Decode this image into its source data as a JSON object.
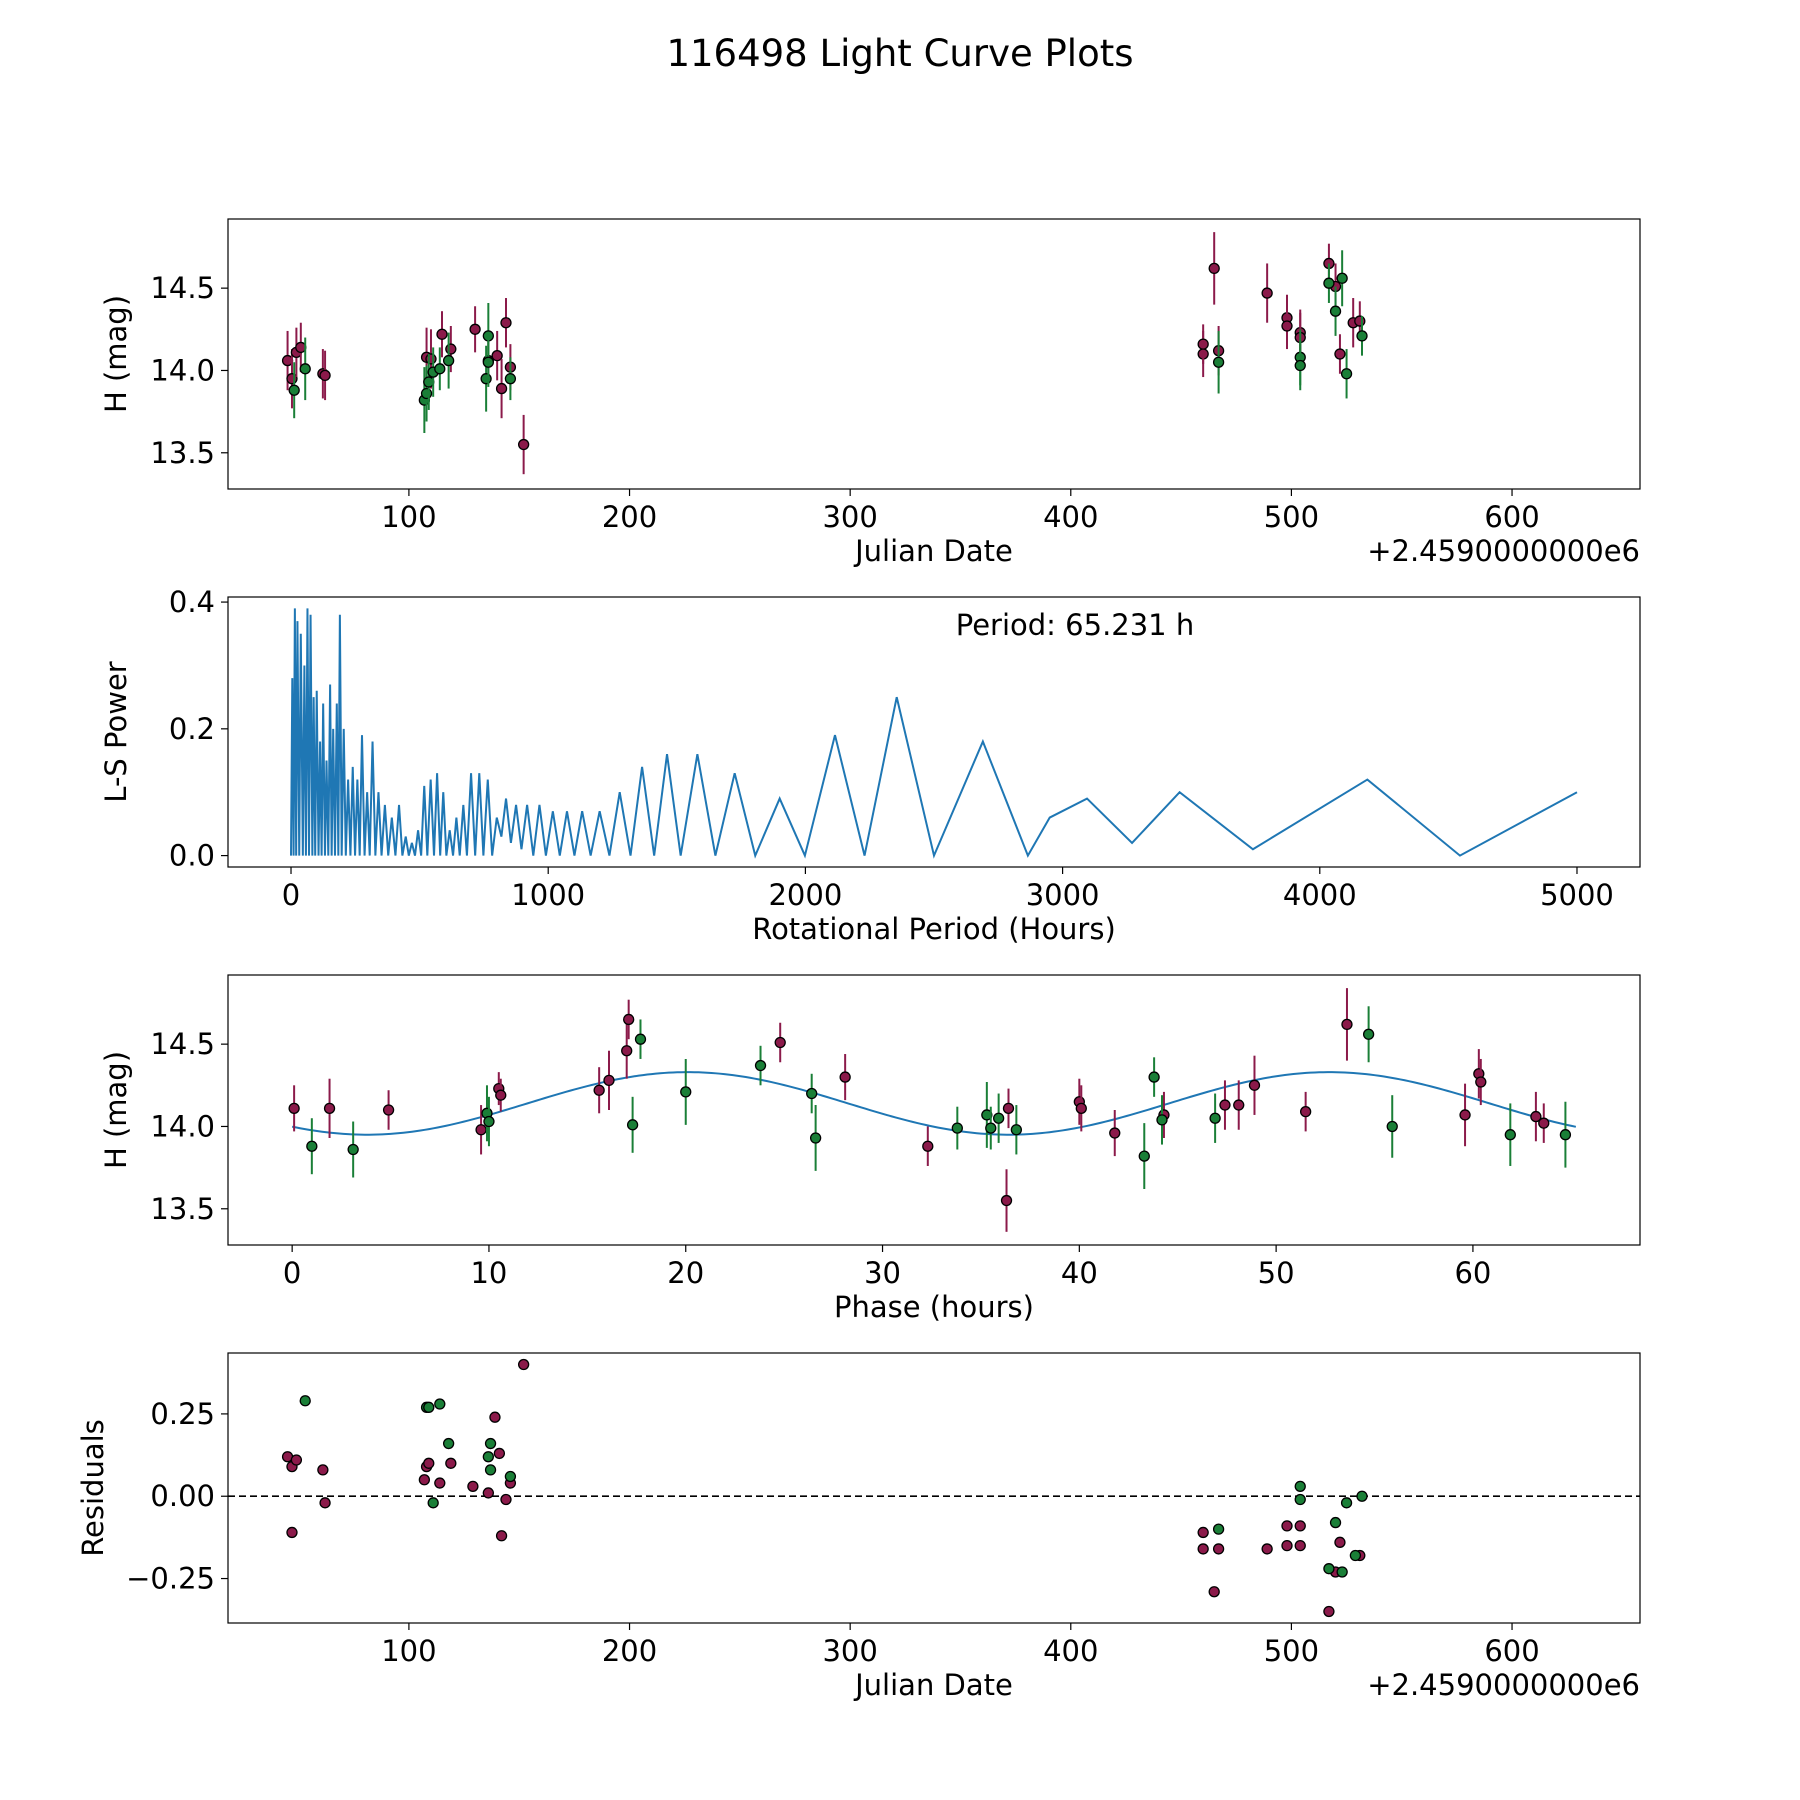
{
  "figure": {
    "title": "116498 Light Curve Plots",
    "colors": {
      "green": "#1a7f37",
      "purple": "#8b1a4a",
      "line": "#1f77b4",
      "edge": "#000000"
    }
  },
  "chart_data": [
    {
      "type": "scatter",
      "name": "light-curve",
      "xlabel": "Julian Date",
      "ylabel": "H (mag)",
      "offset_label": "+2.4590000000e6",
      "xlim": [
        18,
        658
      ],
      "ylim": [
        13.28,
        14.92
      ],
      "xticks": [
        100,
        200,
        300,
        400,
        500,
        600
      ],
      "xtick_labels": [
        "100",
        "200",
        "300",
        "400",
        "500",
        "600"
      ],
      "yticks": [
        13.5,
        14.0,
        14.5
      ],
      "ytick_labels": [
        "13.5",
        "14.0",
        "14.5"
      ],
      "series": [
        {
          "name": "purple",
          "color": "#8b1a4a",
          "x": [
            45,
            47,
            49,
            51,
            61,
            62,
            108,
            110,
            115,
            119,
            130,
            136,
            140,
            142,
            144,
            146,
            152,
            460,
            460,
            465,
            467,
            489,
            498,
            498,
            504,
            504,
            517,
            520,
            522,
            528,
            531
          ],
          "y": [
            14.06,
            13.95,
            14.11,
            14.14,
            13.98,
            13.97,
            14.08,
            14.07,
            14.22,
            14.13,
            14.25,
            14.06,
            14.09,
            13.89,
            14.29,
            14.02,
            13.55,
            14.1,
            14.16,
            14.62,
            14.12,
            14.47,
            14.32,
            14.27,
            14.23,
            14.2,
            14.65,
            14.51,
            14.1,
            14.29,
            14.3
          ],
          "err": [
            0.18,
            0.18,
            0.15,
            0.15,
            0.15,
            0.15,
            0.18,
            0.18,
            0.14,
            0.14,
            0.14,
            0.14,
            0.15,
            0.18,
            0.15,
            0.14,
            0.18,
            0.14,
            0.12,
            0.22,
            0.15,
            0.18,
            0.14,
            0.14,
            0.14,
            0.15,
            0.12,
            0.14,
            0.12,
            0.15,
            0.12
          ]
        },
        {
          "name": "green",
          "color": "#1a7f37",
          "x": [
            48,
            53,
            107,
            108,
            109,
            111,
            114,
            118,
            135,
            136,
            136,
            146,
            467,
            504,
            504,
            517,
            520,
            523,
            525,
            532
          ],
          "y": [
            13.88,
            14.01,
            13.82,
            13.86,
            13.93,
            13.99,
            14.01,
            14.06,
            13.95,
            14.21,
            14.05,
            13.95,
            14.05,
            14.08,
            14.03,
            14.53,
            14.36,
            14.56,
            13.98,
            14.21
          ],
          "err": [
            0.17,
            0.19,
            0.2,
            0.17,
            0.17,
            0.15,
            0.13,
            0.17,
            0.2,
            0.2,
            0.15,
            0.13,
            0.19,
            0.17,
            0.15,
            0.12,
            0.15,
            0.17,
            0.15,
            0.12
          ]
        }
      ]
    },
    {
      "type": "line",
      "name": "periodogram",
      "xlabel": "Rotational Period (Hours)",
      "ylabel": "L-S Power",
      "annotation": "Period: 65.231 h",
      "xlim": [
        -245,
        5245
      ],
      "ylim": [
        -0.018,
        0.408
      ],
      "xticks": [
        0,
        1000,
        2000,
        3000,
        4000,
        5000
      ],
      "xtick_labels": [
        "0",
        "1000",
        "2000",
        "3000",
        "4000",
        "5000"
      ],
      "yticks": [
        0.0,
        0.2,
        0.4
      ],
      "ytick_labels": [
        "0.0",
        "0.2",
        "0.4"
      ],
      "color": "#1f77b4",
      "peaks": [
        [
          0,
          0.0
        ],
        [
          5,
          0.28
        ],
        [
          10,
          0.0
        ],
        [
          15,
          0.39
        ],
        [
          20,
          0.0
        ],
        [
          25,
          0.37
        ],
        [
          32,
          0.0
        ],
        [
          38,
          0.35
        ],
        [
          46,
          0.0
        ],
        [
          52,
          0.3
        ],
        [
          58,
          0.0
        ],
        [
          64,
          0.39
        ],
        [
          70,
          0.0
        ],
        [
          76,
          0.38
        ],
        [
          83,
          0.0
        ],
        [
          88,
          0.25
        ],
        [
          94,
          0.0
        ],
        [
          100,
          0.26
        ],
        [
          107,
          0.0
        ],
        [
          113,
          0.18
        ],
        [
          119,
          0.0
        ],
        [
          125,
          0.24
        ],
        [
          132,
          0.0
        ],
        [
          138,
          0.15
        ],
        [
          145,
          0.0
        ],
        [
          152,
          0.27
        ],
        [
          158,
          0.0
        ],
        [
          164,
          0.2
        ],
        [
          171,
          0.0
        ],
        [
          178,
          0.24
        ],
        [
          184,
          0.0
        ],
        [
          190,
          0.38
        ],
        [
          197,
          0.0
        ],
        [
          205,
          0.2
        ],
        [
          213,
          0.0
        ],
        [
          222,
          0.12
        ],
        [
          231,
          0.0
        ],
        [
          240,
          0.14
        ],
        [
          249,
          0.0
        ],
        [
          258,
          0.12
        ],
        [
          267,
          0.0
        ],
        [
          276,
          0.19
        ],
        [
          286,
          0.0
        ],
        [
          296,
          0.1
        ],
        [
          306,
          0.0
        ],
        [
          317,
          0.18
        ],
        [
          328,
          0.0
        ],
        [
          340,
          0.1
        ],
        [
          352,
          0.0
        ],
        [
          365,
          0.08
        ],
        [
          378,
          0.0
        ],
        [
          392,
          0.06
        ],
        [
          406,
          0.0
        ],
        [
          420,
          0.08
        ],
        [
          433,
          0.0
        ],
        [
          446,
          0.03
        ],
        [
          458,
          0.0
        ],
        [
          470,
          0.02
        ],
        [
          482,
          0.0
        ],
        [
          494,
          0.04
        ],
        [
          506,
          0.0
        ],
        [
          518,
          0.11
        ],
        [
          530,
          0.0
        ],
        [
          543,
          0.12
        ],
        [
          556,
          0.0
        ],
        [
          568,
          0.13
        ],
        [
          580,
          0.0
        ],
        [
          592,
          0.1
        ],
        [
          604,
          0.0
        ],
        [
          617,
          0.04
        ],
        [
          630,
          0.0
        ],
        [
          643,
          0.06
        ],
        [
          656,
          0.0
        ],
        [
          670,
          0.08
        ],
        [
          684,
          0.0
        ],
        [
          700,
          0.13
        ],
        [
          716,
          0.0
        ],
        [
          732,
          0.13
        ],
        [
          748,
          0.0
        ],
        [
          765,
          0.12
        ],
        [
          782,
          0.0
        ],
        [
          800,
          0.06
        ],
        [
          818,
          0.03
        ],
        [
          836,
          0.09
        ],
        [
          855,
          0.02
        ],
        [
          875,
          0.08
        ],
        [
          896,
          0.01
        ],
        [
          918,
          0.08
        ],
        [
          942,
          0.0
        ],
        [
          966,
          0.08
        ],
        [
          991,
          0.0
        ],
        [
          1018,
          0.07
        ],
        [
          1045,
          0.0
        ],
        [
          1073,
          0.07
        ],
        [
          1102,
          0.0
        ],
        [
          1132,
          0.07
        ],
        [
          1165,
          0.0
        ],
        [
          1200,
          0.07
        ],
        [
          1238,
          0.0
        ],
        [
          1278,
          0.1
        ],
        [
          1320,
          0.0
        ],
        [
          1365,
          0.14
        ],
        [
          1412,
          0.0
        ],
        [
          1462,
          0.16
        ],
        [
          1515,
          0.0
        ],
        [
          1580,
          0.16
        ],
        [
          1650,
          0.0
        ],
        [
          1725,
          0.13
        ],
        [
          1805,
          0.0
        ],
        [
          1900,
          0.09
        ],
        [
          1998,
          0.0
        ],
        [
          2115,
          0.19
        ],
        [
          2230,
          0.0
        ],
        [
          2355,
          0.25
        ],
        [
          2500,
          0.0
        ],
        [
          2690,
          0.18
        ],
        [
          2865,
          0.0
        ],
        [
          2950,
          0.06
        ],
        [
          3095,
          0.09
        ],
        [
          3270,
          0.02
        ],
        [
          3455,
          0.1
        ],
        [
          3740,
          0.01
        ],
        [
          4185,
          0.12
        ],
        [
          4545,
          0.0
        ],
        [
          5000,
          0.1
        ]
      ]
    },
    {
      "type": "scatter",
      "name": "phase-folded",
      "xlabel": "Phase (hours)",
      "ylabel": "H (mag)",
      "xlim": [
        -3.26,
        68.49
      ],
      "ylim": [
        13.28,
        14.92
      ],
      "xticks": [
        0,
        10,
        20,
        30,
        40,
        50,
        60
      ],
      "xtick_labels": [
        "0",
        "10",
        "20",
        "30",
        "40",
        "50",
        "60"
      ],
      "yticks": [
        13.5,
        14.0,
        14.5
      ],
      "ytick_labels": [
        "13.5",
        "14.0",
        "14.5"
      ],
      "model": {
        "period": 65.231,
        "mean": 14.14,
        "amplitude": 0.19,
        "type": "sinusoid"
      },
      "series": [
        {
          "name": "purple",
          "color": "#8b1a4a",
          "x": [
            0.1,
            1.9,
            4.9,
            9.6,
            10.5,
            10.6,
            15.6,
            16.1,
            17.0,
            17.1,
            24.8,
            28.1,
            32.3,
            36.3,
            36.4,
            40.0,
            40.1,
            41.8,
            44.3,
            47.4,
            48.1,
            48.9,
            51.5,
            53.6,
            59.6,
            60.3,
            60.4,
            63.2,
            63.6
          ],
          "y": [
            14.11,
            14.11,
            14.1,
            13.98,
            14.23,
            14.19,
            14.22,
            14.28,
            14.46,
            14.65,
            14.51,
            14.3,
            13.88,
            13.55,
            14.11,
            14.15,
            14.11,
            13.96,
            14.07,
            14.13,
            14.13,
            14.25,
            14.09,
            14.62,
            14.07,
            14.32,
            14.27,
            14.06,
            14.02
          ],
          "err": [
            0.14,
            0.18,
            0.12,
            0.15,
            0.1,
            0.1,
            0.14,
            0.18,
            0.17,
            0.12,
            0.12,
            0.14,
            0.12,
            0.19,
            0.12,
            0.14,
            0.14,
            0.14,
            0.14,
            0.15,
            0.15,
            0.18,
            0.12,
            0.22,
            0.19,
            0.15,
            0.14,
            0.15,
            0.12
          ]
        },
        {
          "name": "green",
          "color": "#1a7f37",
          "x": [
            1.0,
            3.1,
            9.9,
            10.0,
            17.3,
            17.7,
            20.0,
            23.8,
            26.4,
            26.6,
            33.8,
            35.3,
            35.5,
            35.9,
            36.8,
            43.3,
            43.8,
            44.2,
            46.9,
            54.7,
            55.9,
            61.9,
            64.7
          ],
          "y": [
            13.88,
            13.86,
            14.08,
            14.03,
            14.01,
            14.53,
            14.21,
            14.37,
            14.2,
            13.93,
            13.99,
            14.07,
            13.99,
            14.05,
            13.98,
            13.82,
            14.3,
            14.04,
            14.05,
            14.56,
            14.0,
            13.95,
            13.95
          ],
          "err": [
            0.17,
            0.17,
            0.17,
            0.15,
            0.17,
            0.12,
            0.2,
            0.12,
            0.12,
            0.2,
            0.13,
            0.2,
            0.13,
            0.15,
            0.15,
            0.2,
            0.12,
            0.15,
            0.15,
            0.17,
            0.19,
            0.19,
            0.2
          ]
        }
      ]
    },
    {
      "type": "scatter",
      "name": "residuals",
      "xlabel": "Julian Date",
      "ylabel": "Residuals",
      "offset_label": "+2.4590000000e6",
      "xlim": [
        18,
        658
      ],
      "ylim": [
        -0.385,
        0.435
      ],
      "xticks": [
        100,
        200,
        300,
        400,
        500,
        600
      ],
      "xtick_labels": [
        "100",
        "200",
        "300",
        "400",
        "500",
        "600"
      ],
      "yticks": [
        -0.25,
        0.0,
        0.25
      ],
      "ytick_labels": [
        "−0.25",
        "0.00",
        "0.25"
      ],
      "reference_line": 0.0,
      "series": [
        {
          "name": "purple",
          "color": "#8b1a4a",
          "x": [
            45,
            47,
            47,
            49,
            61,
            62,
            107,
            108,
            109,
            114,
            119,
            129,
            136,
            139,
            141,
            142,
            144,
            146,
            152,
            460,
            460,
            465,
            467,
            489,
            498,
            498,
            504,
            504,
            517,
            520,
            522,
            531
          ],
          "y": [
            0.12,
            0.09,
            -0.11,
            0.11,
            0.08,
            -0.02,
            0.05,
            0.09,
            0.1,
            0.04,
            0.1,
            0.03,
            0.01,
            0.24,
            0.13,
            -0.12,
            -0.01,
            0.04,
            0.4,
            -0.16,
            -0.11,
            -0.29,
            -0.16,
            -0.16,
            -0.09,
            -0.15,
            -0.09,
            -0.15,
            -0.35,
            -0.23,
            -0.14,
            -0.18
          ]
        },
        {
          "name": "green",
          "color": "#1a7f37",
          "x": [
            53,
            108,
            109,
            111,
            114,
            118,
            136,
            137,
            137,
            146,
            467,
            504,
            504,
            517,
            520,
            523,
            525,
            529,
            532
          ],
          "y": [
            0.29,
            0.27,
            0.27,
            -0.02,
            0.28,
            0.16,
            0.12,
            0.16,
            0.08,
            0.06,
            -0.1,
            0.03,
            -0.01,
            -0.22,
            -0.08,
            -0.23,
            -0.02,
            -0.18,
            0.0
          ]
        }
      ]
    }
  ]
}
